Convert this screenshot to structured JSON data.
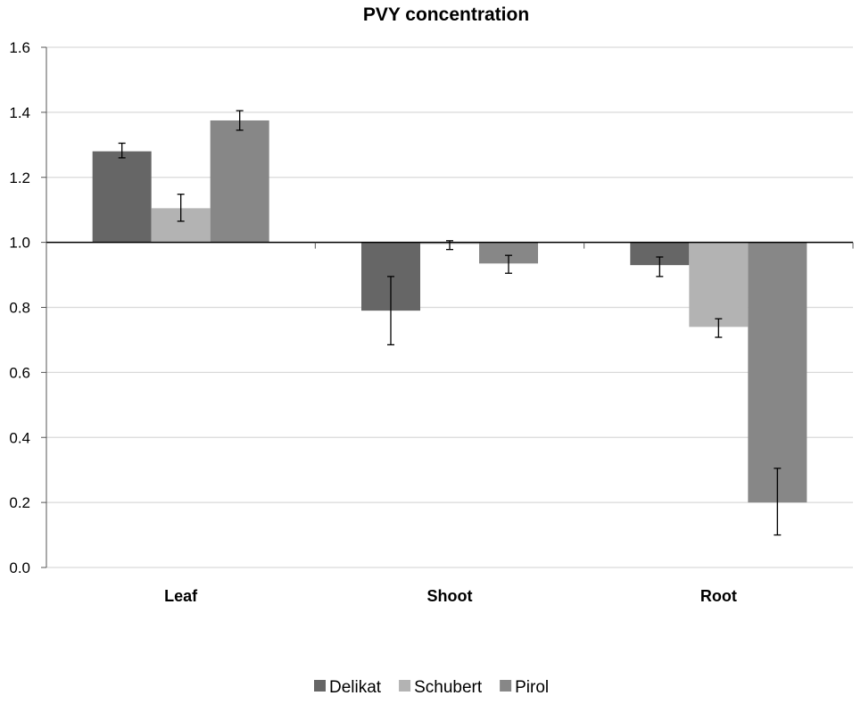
{
  "chart_data": {
    "type": "bar",
    "title": "PVY concentration",
    "xlabel": "",
    "ylabel": "",
    "categories": [
      "Leaf",
      "Shoot",
      "Root"
    ],
    "baseline": 1.0,
    "ylim": [
      0,
      1.6
    ],
    "yticks": [
      "0.0",
      "0.2",
      "0.4",
      "0.6",
      "0.8",
      "1.0",
      "1.2",
      "1.4",
      "1.6"
    ],
    "grid": true,
    "legend_position": "bottom",
    "series": [
      {
        "name": "Delikat",
        "color": "#666666",
        "values": [
          1.28,
          0.79,
          0.93
        ],
        "error_low": [
          1.26,
          0.685,
          0.895
        ],
        "error_high": [
          1.305,
          0.895,
          0.955
        ]
      },
      {
        "name": "Schubert",
        "color": "#b3b3b3",
        "values": [
          1.105,
          0.995,
          0.74
        ],
        "error_low": [
          1.065,
          0.978,
          0.708
        ],
        "error_high": [
          1.148,
          1.005,
          0.765
        ]
      },
      {
        "name": "Pirol",
        "color": "#878787",
        "values": [
          1.375,
          0.935,
          0.2
        ],
        "error_low": [
          1.345,
          0.905,
          0.1
        ],
        "error_high": [
          1.405,
          0.96,
          0.305
        ]
      }
    ]
  }
}
